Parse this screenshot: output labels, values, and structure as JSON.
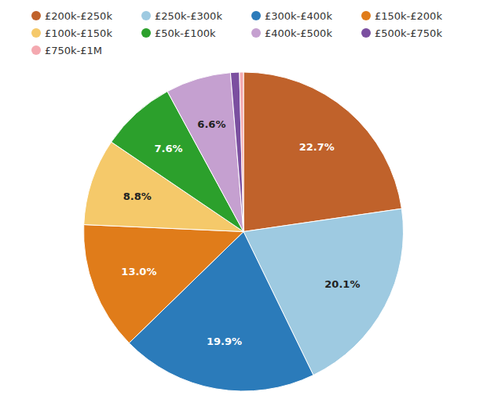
{
  "chart_data": {
    "type": "pie",
    "categories": [
      "£200k-£250k",
      "£250k-£300k",
      "£300k-£400k",
      "£150k-£200k",
      "£100k-£150k",
      "£50k-£100k",
      "£400k-£500k",
      "£500k-£750k",
      "£750k-£1M"
    ],
    "values": [
      22.7,
      20.1,
      19.9,
      13.0,
      8.8,
      7.6,
      6.6,
      0.9,
      0.4
    ],
    "value_labels": [
      "22.7%",
      "20.1%",
      "19.9%",
      "13.0%",
      "8.8%",
      "7.6%",
      "6.6%",
      null,
      null
    ],
    "colors": [
      "#c0622b",
      "#9ecae1",
      "#2b7bba",
      "#e07c1a",
      "#f5c96a",
      "#2ca02c",
      "#c5a0d0",
      "#7b4fa0",
      "#f4a9b0"
    ],
    "data_labels": true,
    "legend": "top"
  }
}
